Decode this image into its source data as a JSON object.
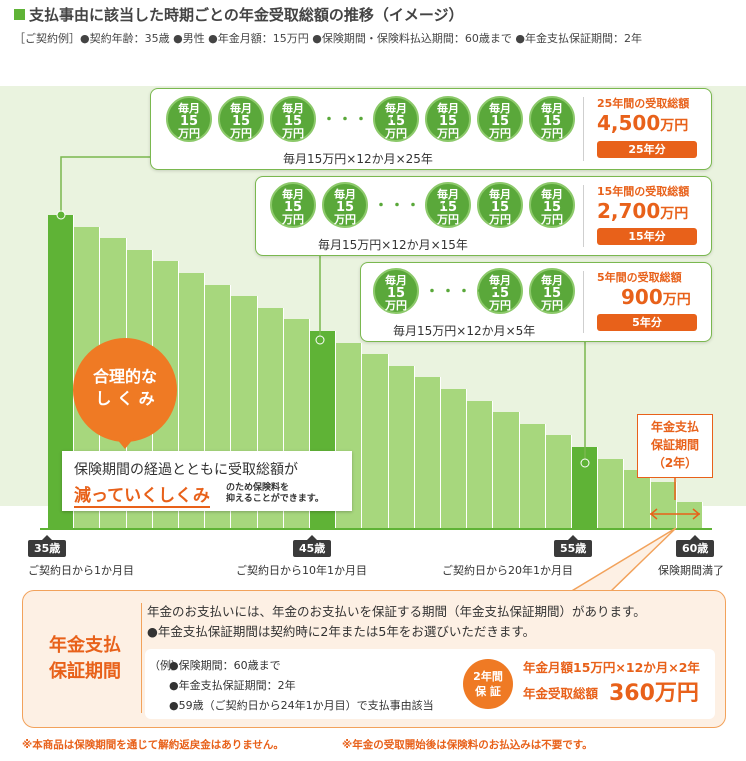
{
  "header": {
    "title": "支払事由に該当した時期ごとの年金受取総額の推移（イメージ）",
    "conditions": "［ご契約例］●契約年齢：35歳 ●男性 ●年金月額：15万円 ●保険期間・保険料払込期間：60歳まで ●年金支払保証期間：2年"
  },
  "coin": {
    "line1": "毎月",
    "line2": "15",
    "line3": "万円"
  },
  "dots": "・・・・・",
  "panels": [
    {
      "formula": "毎月15万円×12か月×25年",
      "total_label": "25年間の受取総額",
      "total_value": "4,500",
      "total_unit": "万円",
      "badge": "25年分"
    },
    {
      "formula": "毎月15万円×12か月×15年",
      "total_label": "15年間の受取総額",
      "total_value": "2,700",
      "total_unit": "万円",
      "badge": "15年分"
    },
    {
      "formula": "毎月15万円×12か月×5年",
      "total_label": "5年間の受取総額",
      "total_value": "900",
      "total_unit": "万円",
      "badge": "5年分"
    }
  ],
  "callout": {
    "line1": "合理的な",
    "line2": "し く み"
  },
  "explain": {
    "line1": "保険期間の経過とともに受取総額が",
    "emph": "減っていくしくみ",
    "small1": "のため保険料を",
    "small2": "抑えることができます。"
  },
  "guarantee_tag": {
    "line1": "年金支払",
    "line2": "保証期間",
    "line3": "（2年）"
  },
  "axis": [
    {
      "age": "35歳",
      "sub": "ご契約日から1か月目"
    },
    {
      "age": "45歳",
      "sub": "ご契約日から10年1か月目"
    },
    {
      "age": "55歳",
      "sub": "ご契約日から20年1か月目"
    },
    {
      "age": "60歳",
      "sub": "保険期間満了"
    }
  ],
  "info": {
    "heading1": "年金支払",
    "heading2": "保証期間",
    "line1": "年金のお支払いには、年金のお支払いを保証する期間（年金支払保証期間）があります。",
    "line2": "●年金支払保証期間は契約時に2年または5年をお選びいただきます。",
    "example_label": "（例）",
    "ex1": "●保険期間：60歳まで",
    "ex2": "●年金支払保証期間：2年",
    "ex3": "●59歳（ご契約日から24年1か月目）で支払事由該当",
    "circle1": "2年間",
    "circle2": "保 証",
    "calc": "年金月額15万円×12か月×2年",
    "total_label": "年金受取総額",
    "total_value": "360万円"
  },
  "footnotes": {
    "n1": "※本商品は保険期間を通じて解約返戻金はありません。",
    "n2": "※年金の受取開始後は保険料のお払込みは不要です。"
  },
  "colors": {
    "green_dark": "#5fb336",
    "green_light": "#a7d77d",
    "orange": "#e8611a",
    "band": "#eaf3df"
  }
}
